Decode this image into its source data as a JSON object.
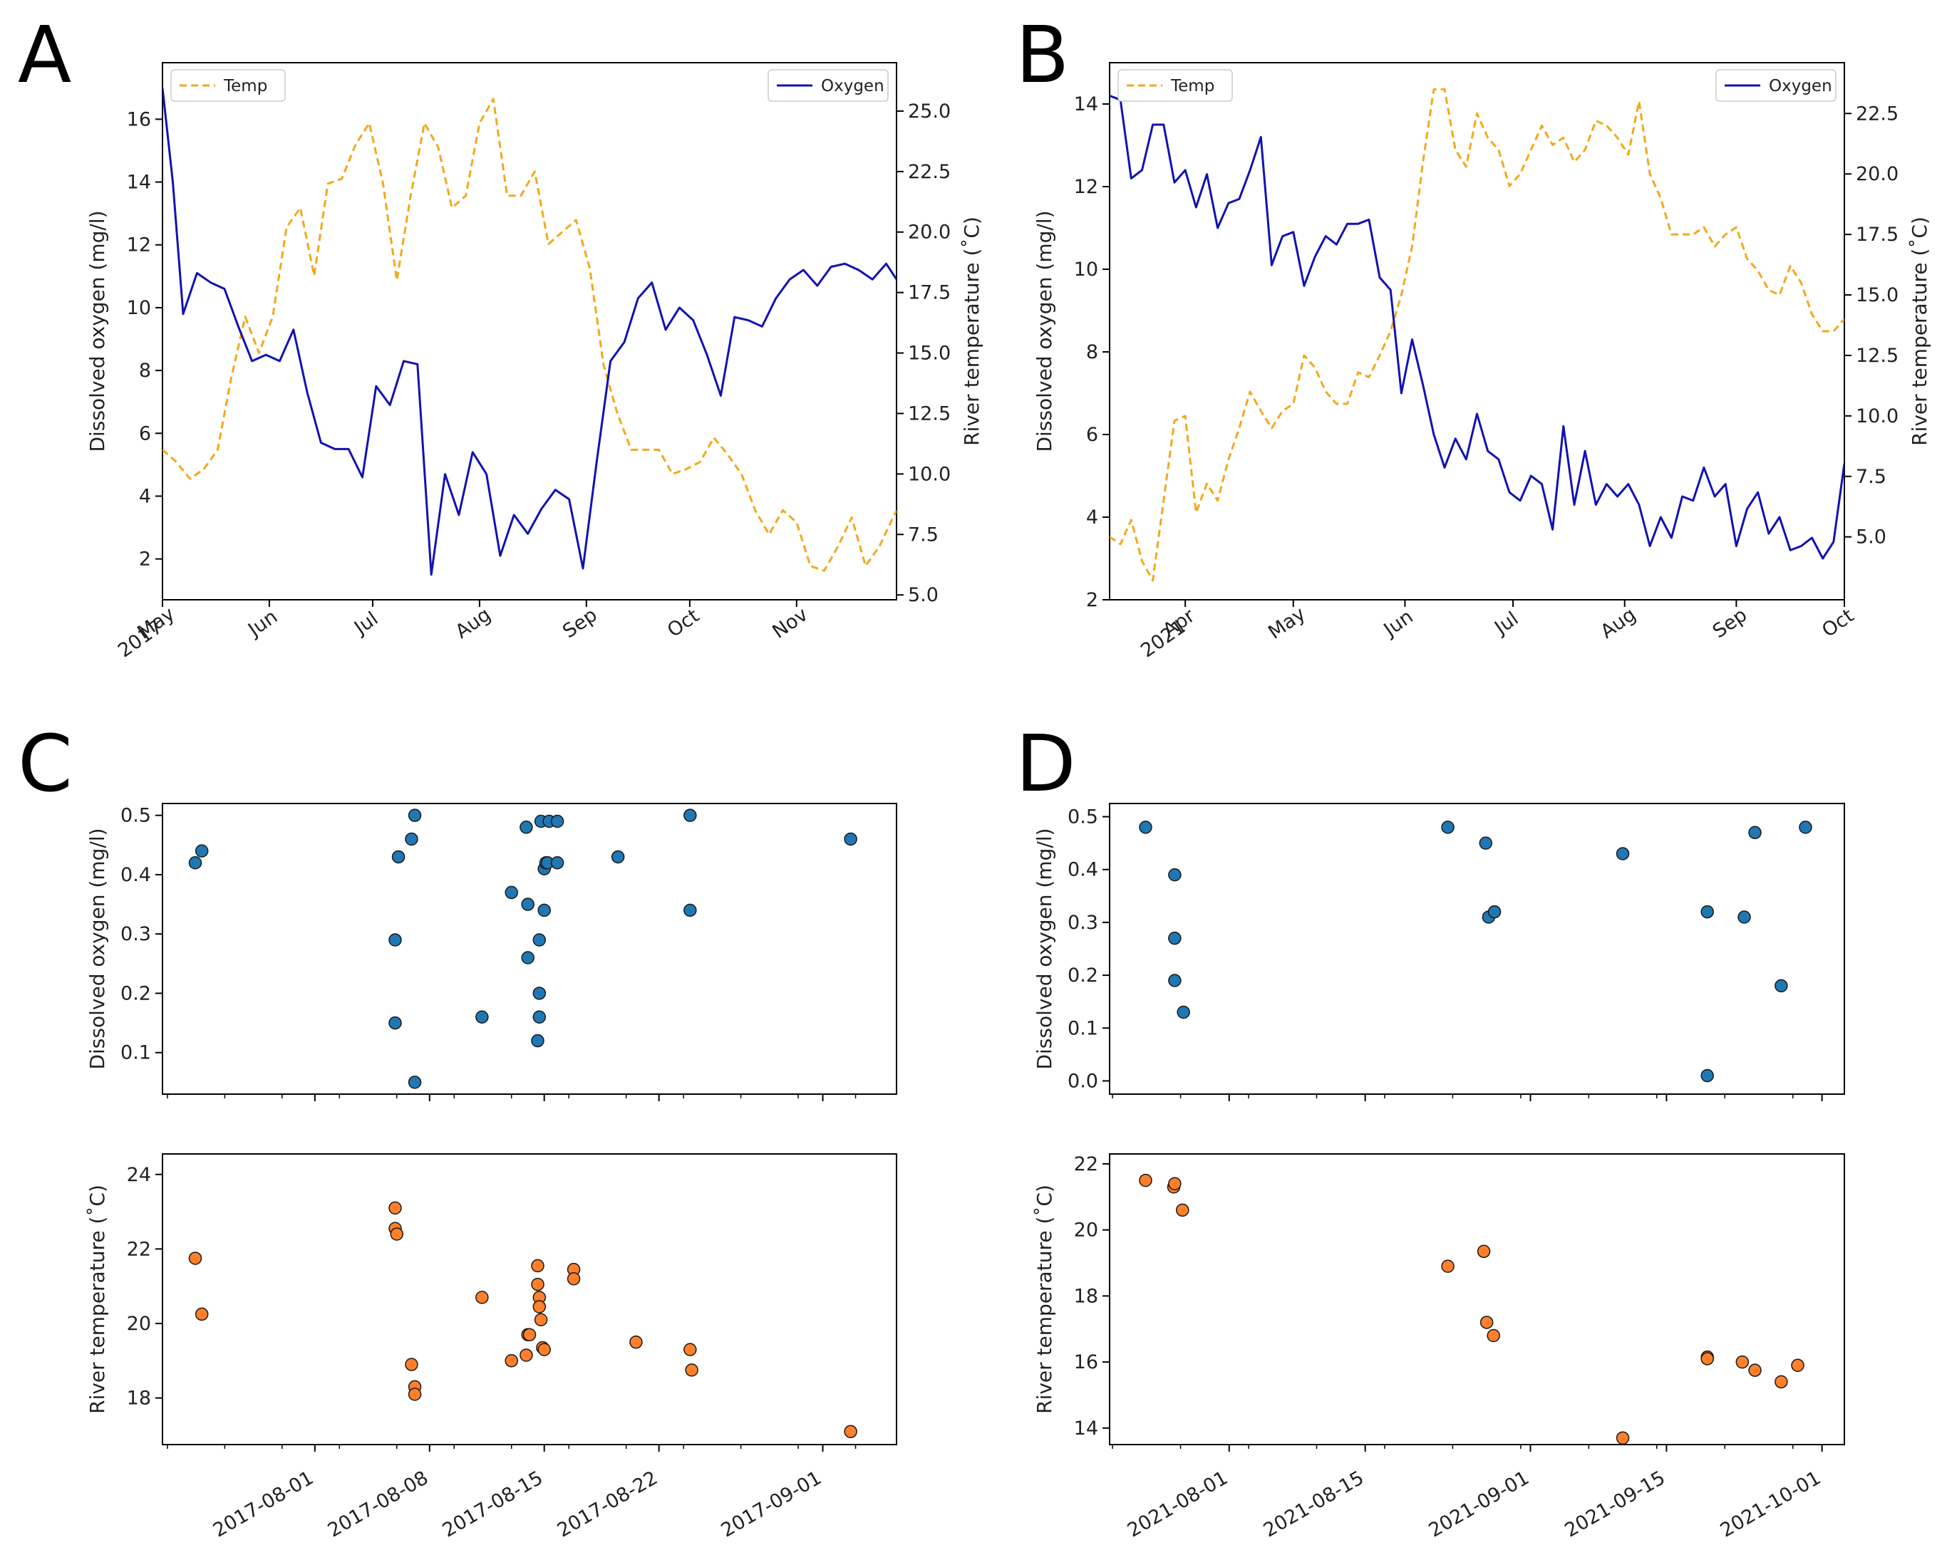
{
  "panels": [
    {
      "letter": "A"
    },
    {
      "letter": "B"
    },
    {
      "letter": "C"
    },
    {
      "letter": "D"
    }
  ],
  "colors": {
    "temp": "#f2a81d",
    "oxygen": "#1212b0",
    "do_points": "#1f77b4",
    "temp_points": "#ff7f2a"
  },
  "chart_data": [
    {
      "panel": "A",
      "type": "line",
      "xlabels": [
        [
          "May",
          "2017"
        ],
        [
          "Jun"
        ],
        [
          "Jul"
        ],
        [
          "Aug"
        ],
        [
          "Sep"
        ],
        [
          "Oct"
        ],
        [
          "Nov"
        ]
      ],
      "xticks": [
        0,
        31,
        61,
        92,
        123,
        153,
        184
      ],
      "xrange": [
        0,
        213
      ],
      "ylabel": "Dissolved oxygen (mg/l)",
      "y2label": "River temperature (˚C)",
      "yrange": [
        0.7,
        17.8
      ],
      "yticks": [
        2,
        4,
        6,
        8,
        10,
        12,
        14,
        16
      ],
      "y2range": [
        4.8,
        27
      ],
      "y2ticks": [
        5.0,
        7.5,
        10.0,
        12.5,
        15.0,
        17.5,
        20.0,
        22.5,
        25.0
      ],
      "legend_left": "Temp",
      "legend_right": "Oxygen",
      "series": [
        {
          "name": "Temp",
          "axis": "right",
          "style": "dashed",
          "x": [
            0,
            4,
            8,
            12,
            16,
            20,
            24,
            28,
            32,
            36,
            40,
            44,
            48,
            52,
            56,
            60,
            64,
            68,
            72,
            76,
            80,
            84,
            88,
            92,
            96,
            100,
            104,
            108,
            112,
            116,
            120,
            124,
            128,
            132,
            136,
            140,
            144,
            148,
            152,
            156,
            160,
            164,
            168,
            172,
            176,
            180,
            184,
            188,
            192,
            196,
            200,
            204,
            208,
            213
          ],
          "y": [
            11,
            10.5,
            9.8,
            10.2,
            11,
            14,
            16.5,
            15,
            16.5,
            20.2,
            21,
            18.2,
            22,
            22.2,
            23.6,
            24.5,
            22,
            18,
            21.5,
            24.5,
            23.5,
            21,
            21.5,
            24.5,
            25.5,
            21.5,
            21.5,
            22.5,
            19.5,
            20,
            20.5,
            18.5,
            14.5,
            12.5,
            11,
            11,
            11,
            10,
            10.2,
            10.5,
            11.5,
            10.8,
            10,
            8.5,
            7.5,
            8.5,
            8,
            6.2,
            6,
            7,
            8.2,
            6.2,
            7,
            8.5
          ]
        },
        {
          "name": "Oxygen",
          "axis": "left",
          "style": "solid",
          "x": [
            0,
            3,
            6,
            10,
            14,
            18,
            22,
            26,
            30,
            34,
            38,
            42,
            46,
            50,
            54,
            58,
            62,
            66,
            70,
            74,
            78,
            82,
            86,
            90,
            94,
            98,
            102,
            106,
            110,
            114,
            118,
            122,
            126,
            130,
            134,
            138,
            142,
            146,
            150,
            154,
            158,
            162,
            166,
            170,
            174,
            178,
            182,
            186,
            190,
            194,
            198,
            202,
            206,
            210,
            213
          ],
          "y": [
            17,
            14,
            9.8,
            11.1,
            10.8,
            10.6,
            9.4,
            8.3,
            8.5,
            8.3,
            9.3,
            7.3,
            5.7,
            5.5,
            5.5,
            4.6,
            7.5,
            6.9,
            8.3,
            8.2,
            1.5,
            4.7,
            3.4,
            5.4,
            4.7,
            2.1,
            3.4,
            2.8,
            3.6,
            4.2,
            3.9,
            1.7,
            5.1,
            8.3,
            8.9,
            10.3,
            10.8,
            9.3,
            10,
            9.6,
            8.5,
            7.2,
            9.7,
            9.6,
            9.4,
            10.3,
            10.9,
            11.2,
            10.7,
            11.3,
            11.4,
            11.2,
            10.9,
            11.4,
            10.9
          ]
        }
      ]
    },
    {
      "panel": "B",
      "type": "line",
      "xlabels": [
        [
          "Apr",
          "2021"
        ],
        [
          "May"
        ],
        [
          "Jun"
        ],
        [
          "Jul"
        ],
        [
          "Aug"
        ],
        [
          "Sep"
        ],
        [
          "Oct"
        ]
      ],
      "xticks": [
        0,
        30,
        61,
        91,
        122,
        153,
        183
      ],
      "xrange": [
        -21,
        183
      ],
      "ylabel": "Dissolved oxygen (mg/l)",
      "y2label": "River temperature (˚C)",
      "yrange": [
        2,
        15
      ],
      "yticks": [
        2,
        4,
        6,
        8,
        10,
        12,
        14
      ],
      "y2range": [
        2.4,
        24.6
      ],
      "y2ticks": [
        5.0,
        7.5,
        10.0,
        12.5,
        15.0,
        17.5,
        20.0,
        22.5
      ],
      "legend_left": "Temp",
      "legend_right": "Oxygen",
      "series": [
        {
          "name": "Temp",
          "axis": "right",
          "style": "dashed",
          "x": [
            -21,
            -18,
            -15,
            -12,
            -9,
            -6,
            -3,
            0,
            3,
            6,
            9,
            12,
            15,
            18,
            21,
            24,
            27,
            30,
            33,
            36,
            39,
            42,
            45,
            48,
            51,
            54,
            57,
            60,
            63,
            66,
            69,
            72,
            75,
            78,
            81,
            84,
            87,
            90,
            93,
            96,
            99,
            102,
            105,
            108,
            111,
            114,
            117,
            120,
            123,
            126,
            129,
            132,
            135,
            138,
            141,
            144,
            147,
            150,
            153,
            156,
            159,
            162,
            165,
            168,
            171,
            174,
            177,
            180,
            183
          ],
          "y": [
            5,
            4.7,
            5.7,
            4,
            3.2,
            6.5,
            9.8,
            10,
            6,
            7.2,
            6.5,
            8.2,
            9.5,
            11,
            10.2,
            9.5,
            10.2,
            10.5,
            12.5,
            12,
            11,
            10.5,
            10.5,
            11.8,
            11.6,
            12.5,
            13.5,
            15,
            17,
            20.5,
            23.5,
            23.5,
            21,
            20.3,
            22.5,
            21.5,
            21,
            19.5,
            20,
            21,
            22,
            21.2,
            21.5,
            20.5,
            21,
            22.2,
            22,
            21.5,
            20.8,
            23,
            20,
            19,
            17.5,
            17.5,
            17.5,
            17.8,
            17,
            17.5,
            17.8,
            16.5,
            16,
            15.2,
            15,
            16.2,
            15.5,
            14.2,
            13.5,
            13.5,
            14
          ]
        },
        {
          "name": "Oxygen",
          "axis": "left",
          "style": "solid",
          "x": [
            -21,
            -18,
            -15,
            -12,
            -9,
            -6,
            -3,
            0,
            3,
            6,
            9,
            12,
            15,
            18,
            21,
            24,
            27,
            30,
            33,
            36,
            39,
            42,
            45,
            48,
            51,
            54,
            57,
            60,
            63,
            66,
            69,
            72,
            75,
            78,
            81,
            84,
            87,
            90,
            93,
            96,
            99,
            102,
            105,
            108,
            111,
            114,
            117,
            120,
            123,
            126,
            129,
            132,
            135,
            138,
            141,
            144,
            147,
            150,
            153,
            156,
            159,
            162,
            165,
            168,
            171,
            174,
            177,
            180,
            183
          ],
          "y": [
            14.2,
            14.1,
            12.2,
            12.4,
            13.5,
            13.5,
            12.1,
            12.4,
            11.5,
            12.3,
            11,
            11.6,
            11.7,
            12.4,
            13.2,
            10.1,
            10.8,
            10.9,
            9.6,
            10.3,
            10.8,
            10.6,
            11.1,
            11.1,
            11.2,
            9.8,
            9.5,
            7,
            8.3,
            7.2,
            6,
            5.2,
            5.9,
            5.4,
            6.5,
            5.6,
            5.4,
            4.6,
            4.4,
            5,
            4.8,
            3.7,
            6.2,
            4.3,
            5.6,
            4.3,
            4.8,
            4.5,
            4.8,
            4.3,
            3.3,
            4,
            3.5,
            4.5,
            4.4,
            5.2,
            4.5,
            4.8,
            3.3,
            4.2,
            4.6,
            3.6,
            4,
            3.2,
            3.3,
            3.5,
            3,
            3.4,
            5.3
          ]
        }
      ]
    },
    {
      "panel": "C",
      "type": "scatter",
      "title": "",
      "xlabels": [
        "2017-08-01",
        "2017-08-08",
        "2017-08-15",
        "2017-08-22",
        "2017-09-01"
      ],
      "xtick_dates": [
        0,
        7,
        14,
        21,
        31
      ],
      "xrange": [
        -9.3,
        35.5
      ],
      "top": {
        "ylabel": "Dissolved oxygen (mg/l)",
        "yrange": [
          0.03,
          0.52
        ],
        "yticks": [
          0.1,
          0.2,
          0.3,
          0.4,
          0.5
        ],
        "x": [
          -7.3,
          -6.9,
          4.9,
          4.9,
          5.1,
          5.9,
          6.1,
          6.1,
          10.2,
          12.0,
          12.9,
          13.0,
          13.0,
          13.6,
          13.7,
          13.7,
          13.7,
          13.8,
          14.0,
          14.0,
          14.1,
          14.2,
          14.3,
          14.8,
          14.8,
          18.5,
          22.9,
          22.9,
          32.7
        ],
        "y": [
          0.42,
          0.44,
          0.29,
          0.15,
          0.43,
          0.46,
          0.5,
          0.05,
          0.16,
          0.37,
          0.48,
          0.35,
          0.26,
          0.12,
          0.16,
          0.2,
          0.29,
          0.49,
          0.34,
          0.41,
          0.42,
          0.42,
          0.49,
          0.42,
          0.49,
          0.43,
          0.34,
          0.5,
          0.46
        ]
      },
      "bottom": {
        "ylabel": "River temperature (˚C)",
        "yrange": [
          16.75,
          24.55
        ],
        "yticks": [
          18,
          20,
          22,
          24
        ],
        "x": [
          -7.3,
          -6.9,
          4.9,
          4.9,
          5.0,
          5.9,
          6.1,
          6.1,
          10.2,
          12.0,
          12.9,
          13.0,
          13.1,
          13.6,
          13.6,
          13.7,
          13.7,
          13.8,
          13.9,
          14.0,
          15.8,
          15.8,
          19.6,
          22.9,
          23.0,
          32.7
        ],
        "y": [
          21.75,
          20.25,
          23.1,
          22.55,
          22.4,
          18.9,
          18.3,
          18.1,
          20.7,
          19.0,
          19.15,
          19.7,
          19.7,
          21.55,
          21.05,
          20.7,
          20.45,
          20.1,
          19.35,
          19.3,
          21.45,
          21.2,
          19.5,
          19.3,
          18.75,
          17.1
        ]
      }
    },
    {
      "panel": "D",
      "type": "scatter",
      "title": "",
      "xlabels": [
        "2021-08-01",
        "2021-08-15",
        "2021-09-01",
        "2021-09-15",
        "2021-10-01"
      ],
      "xtick_dates": [
        0,
        14,
        31,
        45,
        61
      ],
      "xrange": [
        -12.3,
        63.3
      ],
      "top": {
        "ylabel": "Dissolved oxygen (mg/l)",
        "yrange": [
          -0.025,
          0.525
        ],
        "yticks": [
          0.0,
          0.1,
          0.2,
          0.3,
          0.4,
          0.5
        ],
        "x": [
          -8.6,
          -5.6,
          -5.6,
          -5.6,
          -4.7,
          22.5,
          26.4,
          26.7,
          27.3,
          40.5,
          49.2,
          53.0,
          54.1,
          56.8,
          59.3
        ],
        "y": [
          0.48,
          0.39,
          0.27,
          0.19,
          0.13,
          0.48,
          0.45,
          0.31,
          0.32,
          0.43,
          0.32,
          0.31,
          0.47,
          0.18,
          0.48
        ],
        "extra_x": [
          49.2
        ],
        "extra_y": [
          0.01
        ]
      },
      "bottom": {
        "ylabel": "River temperature (˚C)",
        "yrange": [
          13.5,
          22.3
        ],
        "yticks": [
          14,
          16,
          18,
          20,
          22
        ],
        "x": [
          -8.6,
          -5.7,
          -5.6,
          -4.8,
          22.5,
          26.2,
          26.5,
          27.2,
          40.5,
          49.2,
          49.2,
          52.8,
          54.1,
          56.8,
          58.5
        ],
        "y": [
          21.5,
          21.3,
          21.4,
          20.6,
          18.9,
          19.35,
          17.2,
          16.8,
          13.7,
          16.15,
          16.1,
          16.0,
          15.75,
          15.4,
          15.9
        ]
      }
    }
  ]
}
